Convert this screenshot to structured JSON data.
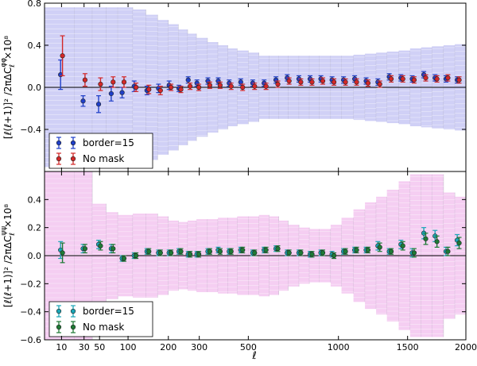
{
  "figure": {
    "xlabel": "ℓ",
    "x_ticks": [
      10,
      30,
      50,
      100,
      200,
      300,
      500,
      1000,
      1500,
      2000
    ],
    "x_tick_labels": [
      "10",
      "30",
      "50",
      "100",
      "200",
      "300",
      "500",
      "1000",
      "1500",
      "2000"
    ],
    "x_scale": "sqrt"
  },
  "chart_data": [
    {
      "type": "scatter",
      "panel": "top",
      "ylabel_left": "[ℓ(ℓ+1)]² /2πΔC",
      "ylabel_sub": "ℓ",
      "ylabel_sup": "φφ",
      "ylabel_right": "×10⁸",
      "ylim": [
        -0.8,
        0.8
      ],
      "y_ticks": [
        -0.8,
        -0.4,
        0.0,
        0.4,
        0.8
      ],
      "y_tick_labels": [
        "",
        "−0.4",
        "0.0",
        "0.4",
        "0.8"
      ],
      "band_color": "#c8c8f5",
      "band": {
        "edges": [
          2,
          20,
          40,
          60,
          80,
          110,
          140,
          170,
          200,
          230,
          260,
          290,
          330,
          370,
          410,
          450,
          500,
          550,
          600,
          650,
          700,
          760,
          820,
          880,
          950,
          1020,
          1100,
          1180,
          1260,
          1340,
          1430,
          1520,
          1610,
          1700,
          1800,
          1900,
          2000
        ],
        "half_widths": [
          0.76,
          0.76,
          0.76,
          0.76,
          0.76,
          0.74,
          0.69,
          0.64,
          0.6,
          0.55,
          0.51,
          0.47,
          0.43,
          0.4,
          0.37,
          0.35,
          0.33,
          0.3,
          0.3,
          0.3,
          0.3,
          0.3,
          0.3,
          0.3,
          0.3,
          0.3,
          0.31,
          0.32,
          0.33,
          0.34,
          0.35,
          0.37,
          0.38,
          0.39,
          0.4,
          0.41
        ]
      },
      "legend": {
        "position": "lower-left"
      },
      "series": [
        {
          "name": "border=15",
          "color": "#1f3fc8",
          "x": [
            10,
            30,
            50,
            70,
            90,
            115,
            145,
            175,
            205,
            235,
            265,
            295,
            335,
            375,
            420,
            470,
            525,
            580,
            640,
            700,
            765,
            830,
            895,
            965,
            1040,
            1115,
            1195,
            1280,
            1365,
            1455,
            1545,
            1640,
            1735,
            1830,
            1930
          ],
          "y": [
            0.12,
            -0.13,
            -0.16,
            -0.06,
            -0.05,
            0.01,
            -0.03,
            -0.01,
            0.02,
            -0.01,
            0.07,
            0.04,
            0.06,
            0.06,
            0.04,
            0.05,
            0.04,
            0.04,
            0.07,
            0.09,
            0.08,
            0.08,
            0.08,
            0.07,
            0.07,
            0.08,
            0.06,
            0.05,
            0.1,
            0.09,
            0.08,
            0.12,
            0.09,
            0.08,
            0.07
          ],
          "err": [
            0.14,
            0.05,
            0.08,
            0.07,
            0.05,
            0.05,
            0.04,
            0.04,
            0.04,
            0.03,
            0.03,
            0.03,
            0.03,
            0.03,
            0.03,
            0.03,
            0.03,
            0.03,
            0.03,
            0.03,
            0.03,
            0.03,
            0.03,
            0.03,
            0.03,
            0.03,
            0.03,
            0.03,
            0.03,
            0.03,
            0.03,
            0.03,
            0.03,
            0.03,
            0.03
          ]
        },
        {
          "name": "No mask",
          "color": "#d32828",
          "x": [
            10,
            30,
            50,
            70,
            90,
            115,
            145,
            175,
            205,
            235,
            265,
            295,
            335,
            375,
            420,
            470,
            525,
            580,
            640,
            700,
            765,
            830,
            895,
            965,
            1040,
            1115,
            1195,
            1280,
            1365,
            1455,
            1545,
            1640,
            1735,
            1830,
            1930
          ],
          "y": [
            0.3,
            0.07,
            0.03,
            0.05,
            0.05,
            0.0,
            -0.02,
            -0.03,
            0.0,
            -0.02,
            0.01,
            0.0,
            0.02,
            0.02,
            0.01,
            0.0,
            0.01,
            0.01,
            0.03,
            0.06,
            0.05,
            0.05,
            0.06,
            0.05,
            0.05,
            0.05,
            0.04,
            0.03,
            0.08,
            0.08,
            0.07,
            0.09,
            0.08,
            0.09,
            0.07
          ],
          "err": [
            0.19,
            0.06,
            0.06,
            0.05,
            0.05,
            0.04,
            0.04,
            0.04,
            0.03,
            0.03,
            0.03,
            0.03,
            0.03,
            0.03,
            0.03,
            0.03,
            0.03,
            0.03,
            0.03,
            0.03,
            0.03,
            0.03,
            0.03,
            0.03,
            0.03,
            0.03,
            0.03,
            0.03,
            0.03,
            0.03,
            0.03,
            0.03,
            0.03,
            0.03,
            0.03
          ]
        }
      ]
    },
    {
      "type": "scatter",
      "panel": "bottom",
      "ylabel_left": "[ℓ(ℓ+1)]² /2πΔC",
      "ylabel_sub": "ℓ",
      "ylabel_sup": "ψψ",
      "ylabel_right": "×10⁸",
      "ylim": [
        -0.6,
        0.6
      ],
      "y_ticks": [
        -0.6,
        -0.4,
        -0.2,
        0.0,
        0.2,
        0.4,
        0.6
      ],
      "y_tick_labels": [
        "−0.6",
        "−0.4",
        "−0.2",
        "0.0",
        "0.2",
        "0.4",
        ""
      ],
      "band_color": "#f3c6f0",
      "band": {
        "edges": [
          2,
          20,
          40,
          60,
          80,
          110,
          140,
          170,
          200,
          230,
          260,
          290,
          330,
          370,
          410,
          450,
          500,
          550,
          600,
          650,
          700,
          760,
          820,
          880,
          950,
          1020,
          1100,
          1180,
          1260,
          1340,
          1430,
          1520,
          1610,
          1700,
          1800,
          1900,
          2000
        ],
        "half_widths": [
          0.6,
          0.6,
          0.37,
          0.31,
          0.29,
          0.3,
          0.3,
          0.28,
          0.25,
          0.24,
          0.25,
          0.26,
          0.26,
          0.27,
          0.27,
          0.28,
          0.28,
          0.29,
          0.28,
          0.25,
          0.22,
          0.2,
          0.19,
          0.19,
          0.22,
          0.27,
          0.33,
          0.38,
          0.42,
          0.47,
          0.53,
          0.58,
          0.58,
          0.58,
          0.45,
          0.42
        ]
      },
      "legend": {
        "position": "lower-left"
      },
      "series": [
        {
          "name": "border=15",
          "color": "#1aa6b7",
          "x": [
            10,
            30,
            50,
            70,
            90,
            115,
            145,
            175,
            205,
            235,
            265,
            295,
            335,
            375,
            420,
            470,
            525,
            580,
            640,
            700,
            765,
            830,
            895,
            965,
            1040,
            1115,
            1195,
            1280,
            1365,
            1455,
            1545,
            1640,
            1735,
            1830,
            1930
          ],
          "y": [
            0.04,
            0.05,
            0.08,
            0.05,
            -0.02,
            0.0,
            0.03,
            0.02,
            0.02,
            0.03,
            0.01,
            0.01,
            0.03,
            0.04,
            0.03,
            0.04,
            0.02,
            0.04,
            0.05,
            0.02,
            0.02,
            0.01,
            0.02,
            0.01,
            0.03,
            0.04,
            0.04,
            0.07,
            0.03,
            0.08,
            0.02,
            0.16,
            0.14,
            0.03,
            0.11
          ],
          "err": [
            0.06,
            0.03,
            0.03,
            0.03,
            0.02,
            0.02,
            0.02,
            0.02,
            0.02,
            0.02,
            0.02,
            0.02,
            0.02,
            0.02,
            0.02,
            0.02,
            0.02,
            0.02,
            0.02,
            0.02,
            0.02,
            0.02,
            0.02,
            0.02,
            0.02,
            0.02,
            0.02,
            0.03,
            0.02,
            0.03,
            0.03,
            0.04,
            0.04,
            0.03,
            0.04
          ]
        },
        {
          "name": "No mask",
          "color": "#1f7a35",
          "x": [
            10,
            30,
            50,
            70,
            90,
            115,
            145,
            175,
            205,
            235,
            265,
            295,
            335,
            375,
            420,
            470,
            525,
            580,
            640,
            700,
            765,
            830,
            895,
            965,
            1040,
            1115,
            1195,
            1280,
            1365,
            1455,
            1545,
            1640,
            1735,
            1830,
            1930
          ],
          "y": [
            0.02,
            0.05,
            0.07,
            0.05,
            -0.02,
            0.0,
            0.03,
            0.02,
            0.02,
            0.03,
            0.01,
            0.01,
            0.03,
            0.03,
            0.03,
            0.04,
            0.02,
            0.04,
            0.05,
            0.02,
            0.02,
            0.01,
            0.02,
            0.0,
            0.03,
            0.04,
            0.04,
            0.06,
            0.03,
            0.07,
            0.02,
            0.12,
            0.1,
            0.03,
            0.09
          ],
          "err": [
            0.07,
            0.03,
            0.03,
            0.03,
            0.02,
            0.02,
            0.02,
            0.02,
            0.02,
            0.02,
            0.02,
            0.02,
            0.02,
            0.02,
            0.02,
            0.02,
            0.02,
            0.02,
            0.02,
            0.02,
            0.02,
            0.02,
            0.02,
            0.02,
            0.02,
            0.02,
            0.02,
            0.03,
            0.02,
            0.03,
            0.03,
            0.04,
            0.04,
            0.03,
            0.04
          ]
        }
      ]
    }
  ]
}
